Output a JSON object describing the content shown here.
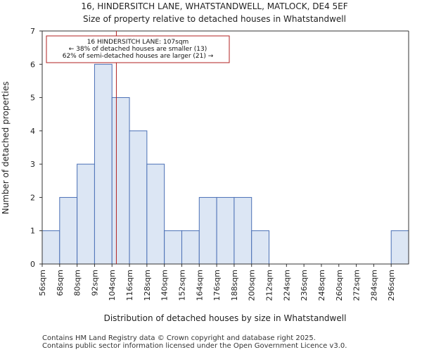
{
  "chart_data": {
    "type": "bar",
    "title": "16, HINDERSITCH LANE, WHATSTANDWELL, MATLOCK, DE4 5EF",
    "subtitle": "Size of property relative to detached houses in Whatstandwell",
    "xlabel": "Distribution of detached houses by size in Whatstandwell",
    "ylabel": "Number of detached properties",
    "categories": [
      "56sqm",
      "68sqm",
      "80sqm",
      "92sqm",
      "104sqm",
      "116sqm",
      "128sqm",
      "140sqm",
      "152sqm",
      "164sqm",
      "176sqm",
      "188sqm",
      "200sqm",
      "212sqm",
      "224sqm",
      "236sqm",
      "248sqm",
      "260sqm",
      "272sqm",
      "284sqm",
      "296sqm"
    ],
    "bin_edges": [
      56,
      68,
      80,
      92,
      104,
      116,
      128,
      140,
      152,
      164,
      176,
      188,
      200,
      212,
      224,
      236,
      248,
      260,
      272,
      284,
      296,
      308
    ],
    "values": [
      1,
      2,
      3,
      6,
      5,
      4,
      3,
      1,
      1,
      2,
      2,
      2,
      1,
      0,
      0,
      0,
      0,
      0,
      0,
      0,
      1
    ],
    "ylim": [
      0,
      7
    ],
    "yticks": [
      "0",
      "1",
      "2",
      "3",
      "4",
      "5",
      "6",
      "7"
    ],
    "marker": {
      "value": 107,
      "color": "#b22222",
      "line1": "16 HINDERSITCH LANE: 107sqm",
      "line2": "← 38% of detached houses are smaller (13)",
      "line3": "62% of semi-detached houses are larger (21) →"
    },
    "bar_fill": "#dce6f4",
    "bar_stroke": "#4a6fb5",
    "footer_line1": "Contains HM Land Registry data © Crown copyright and database right 2025.",
    "footer_line2": "Contains public sector information licensed under the Open Government Licence v3.0."
  }
}
